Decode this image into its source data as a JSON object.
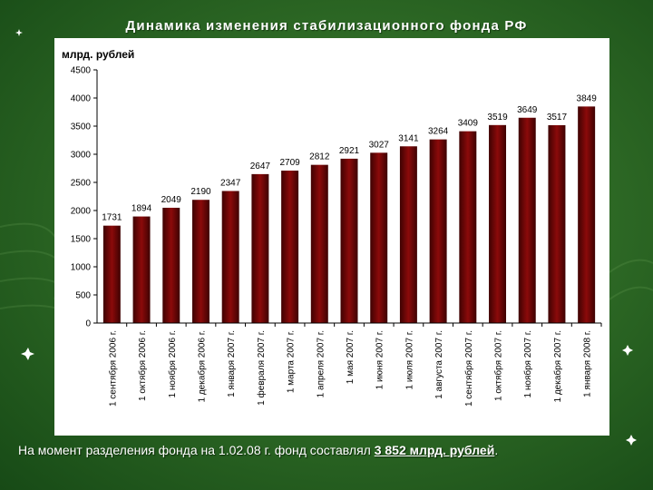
{
  "slide": {
    "title": "Динамика изменения стабилизационного фонда РФ",
    "footnote_prefix": "На момент разделения фонда на 1.02.08 г. фонд составлял ",
    "footnote_highlight": "3 852 млрд. рублей",
    "footnote_suffix": "."
  },
  "chart_data": {
    "type": "bar",
    "ylabel": "млрд. рублей",
    "ylim": [
      0,
      4500
    ],
    "yticks": [
      0,
      500,
      1000,
      1500,
      2000,
      2500,
      3000,
      3500,
      4000,
      4500
    ],
    "grid": false,
    "bar_color": "#8b0a0a",
    "categories": [
      "1 сентября 2006 г.",
      "1 октября 2006 г.",
      "1 ноября 2006 г.",
      "1 декабря 2006 г.",
      "1 января 2007 г.",
      "1 февраля 2007 г.",
      "1 марта 2007 г.",
      "1 апреля 2007 г.",
      "1 мая 2007 г.",
      "1 июня 2007 г.",
      "1 июля 2007 г.",
      "1 августа 2007 г.",
      "1 сентября 2007 г.",
      "1 октября 2007 г.",
      "1 ноября 2007 г.",
      "1 декабря 2007 г.",
      "1 января 2008 г."
    ],
    "values": [
      1731,
      1894,
      2049,
      2190,
      2347,
      2647,
      2709,
      2812,
      2921,
      3027,
      3141,
      3264,
      3409,
      3519,
      3649,
      3517,
      3849
    ],
    "data_labels": [
      "1731",
      "1894",
      "2049",
      "2190",
      "2347",
      "2647",
      "2709",
      "2812",
      "2921",
      "3027",
      "3141",
      "3264",
      "3409",
      "3519",
      "3649",
      "3517",
      "3849"
    ]
  }
}
